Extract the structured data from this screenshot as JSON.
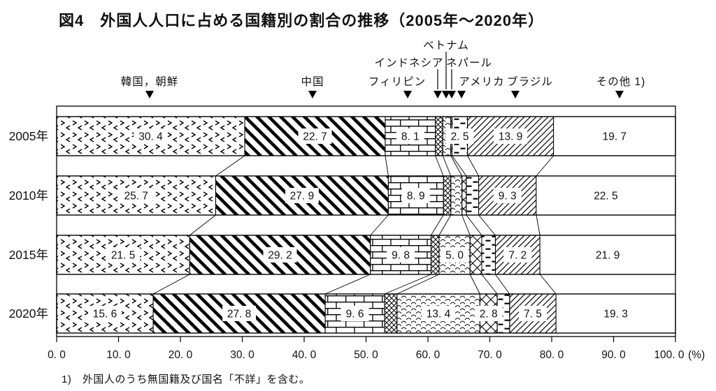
{
  "title": "図4　外国人人口に占める国籍別の割合の推移（2005年～2020年）",
  "footnote": "1)　外国人のうち無国籍及び国名「不詳」を含む。",
  "axis": {
    "ticks": [
      "0. 0",
      "10. 0",
      "20. 0",
      "30. 0",
      "40. 0",
      "50. 0",
      "60. 0",
      "70. 0",
      "80. 0",
      "90. 0",
      "100. 0"
    ],
    "unit": "(%)"
  },
  "chart_data": {
    "type": "bar",
    "subtype": "horizontal-stacked-percentage",
    "title": "図4　外国人人口に占める国籍別の割合の推移（2005年～2020年）",
    "categories": [
      "2005年",
      "2010年",
      "2015年",
      "2020年"
    ],
    "xlim": [
      0,
      100
    ],
    "xlabel": "(%)",
    "legend_position": "top-annotations",
    "grid": false,
    "note": "Values without a printed label in the figure are estimated from segment widths; printed labels are given in 'labels' (null = not printed).",
    "series": [
      {
        "name": "韓国，朝鮮",
        "pattern": "chevron-marks",
        "values": [
          30.4,
          25.7,
          21.5,
          15.6
        ],
        "labels": [
          "30. 4",
          "25. 7",
          "21. 5",
          "15. 6"
        ]
      },
      {
        "name": "中国",
        "pattern": "thick-diagonal-stripes",
        "values": [
          22.7,
          27.9,
          29.2,
          27.8
        ],
        "labels": [
          "22. 7",
          "27. 9",
          "29. 2",
          "27. 8"
        ]
      },
      {
        "name": "フィリピン",
        "pattern": "brick",
        "values": [
          8.1,
          8.9,
          9.8,
          9.6
        ],
        "labels": [
          "8. 1",
          "8. 9",
          "9. 8",
          "9. 6"
        ]
      },
      {
        "name": "インドネシア",
        "pattern": "small-crosshatch",
        "values": [
          1.2,
          1.2,
          1.3,
          2.0
        ],
        "labels": [
          null,
          null,
          null,
          null
        ]
      },
      {
        "name": "ベトナム",
        "pattern": "wavy-lines",
        "values": [
          1.3,
          1.8,
          5.0,
          13.4
        ],
        "labels": [
          null,
          null,
          "5. 0",
          "13. 4"
        ]
      },
      {
        "name": "ネパール",
        "pattern": "large-crosshatch",
        "values": [
          0.2,
          0.7,
          1.9,
          2.8
        ],
        "labels": [
          null,
          null,
          null,
          "2. 8"
        ]
      },
      {
        "name": "アメリカ",
        "pattern": "horizontal-dashes",
        "values": [
          2.5,
          2.0,
          2.2,
          2.0
        ],
        "labels": [
          "2. 5",
          null,
          null,
          null
        ]
      },
      {
        "name": "ブラジル",
        "pattern": "thin-diagonal-hatch",
        "values": [
          13.9,
          9.3,
          7.2,
          7.5
        ],
        "labels": [
          "13. 9",
          "9. 3",
          "7. 2",
          "7. 5"
        ]
      },
      {
        "name": "その他",
        "annotation_label": "その他 1)",
        "pattern": "plain-white",
        "values": [
          19.7,
          22.5,
          21.9,
          19.3
        ],
        "labels": [
          "19. 7",
          "22. 5",
          "21. 9",
          "19. 3"
        ]
      }
    ]
  }
}
